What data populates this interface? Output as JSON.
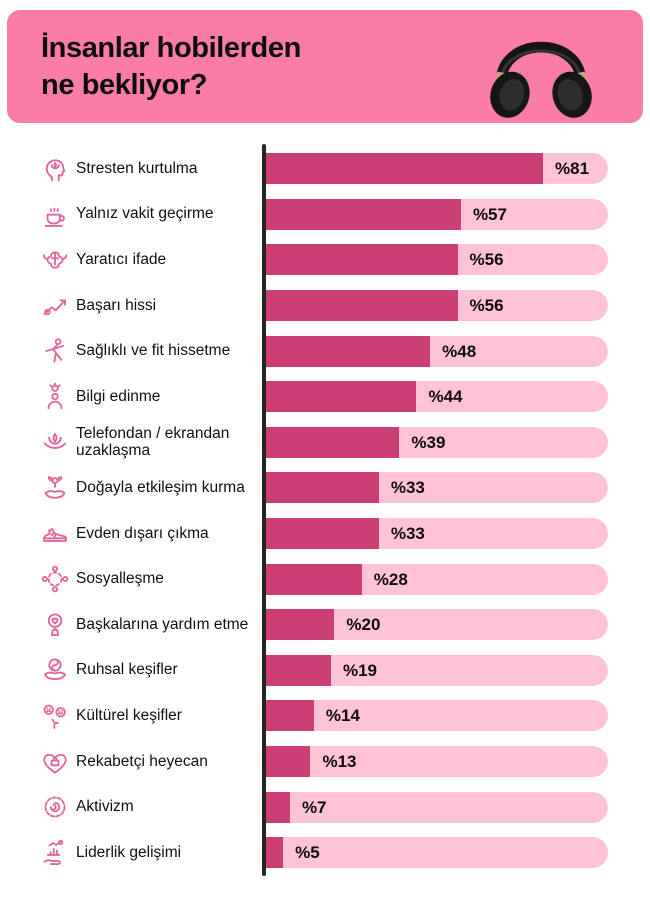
{
  "header": {
    "title_line1": "İnsanlar hobilerden",
    "title_line2": "ne bekliyor?",
    "hero_image": "black-headphones",
    "background_color": "#FB7BA9"
  },
  "chart_data": {
    "type": "bar",
    "orientation": "horizontal",
    "title": "İnsanlar hobilerden ne bekliyor?",
    "xlabel": "",
    "ylabel": "",
    "xlim": [
      0,
      100
    ],
    "grid": false,
    "legend": false,
    "unit": "percent",
    "value_prefix": "%",
    "categories": [
      "Stresten kurtulma",
      "Yalnız vakit geçirme",
      "Yaratıcı ifade",
      "Başarı hissi",
      "Sağlıklı ve fit hissetme",
      "Bilgi edinme",
      "Telefondan / ekrandan uzaklaşma",
      "Doğayla etkileşim kurma",
      "Evden dışarı çıkma",
      "Sosyalleşme",
      "Başkalarına yardım etme",
      "Ruhsal keşifler",
      "Kültürel keşifler",
      "Rekabetçi heyecan",
      "Aktivizm",
      "Liderlik gelişimi"
    ],
    "values": [
      81,
      57,
      56,
      56,
      48,
      44,
      39,
      33,
      33,
      28,
      20,
      19,
      14,
      13,
      7,
      5
    ],
    "display_values": [
      "%81",
      "%57",
      "%56",
      "%56",
      "%48",
      "%44",
      "%39",
      "%33",
      "%33",
      "%28",
      "%20",
      "%19",
      "%14",
      "%13",
      "%7",
      "%5"
    ],
    "icons": [
      "head-lotus",
      "coffee-cup",
      "brain-strength",
      "success-arrow",
      "stretching-person",
      "idea-person",
      "lotus-meditation",
      "hands-flower",
      "sneaker",
      "people-circle",
      "mirror-heart",
      "hands-yinyang",
      "mood-faces",
      "heart-briefcase",
      "activism-badge",
      "hand-growth-chart"
    ],
    "colors": {
      "bar_fill": "#CB3E76",
      "bar_track": "#FFC2D7",
      "axis": "#252525",
      "icon_stroke": "#E3679A",
      "header_bg": "#FB7BA9",
      "text": "#111111"
    }
  }
}
